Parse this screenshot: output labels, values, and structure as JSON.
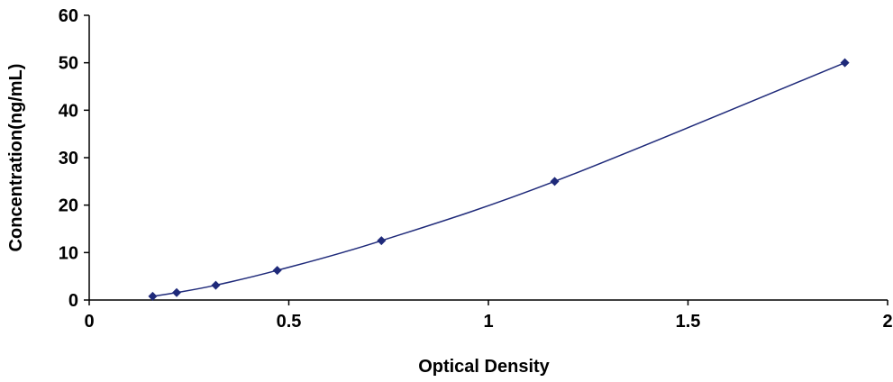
{
  "chart_data": {
    "type": "scatter",
    "xlabel": "Optical Density",
    "ylabel": "Concentration(ng/mL)",
    "xlim": [
      0,
      2
    ],
    "ylim": [
      0,
      60
    ],
    "x_ticks": [
      0,
      0.5,
      1,
      1.5,
      2
    ],
    "x_tick_labels": [
      "0",
      "0.5",
      "1",
      "1.5",
      "2"
    ],
    "y_ticks": [
      0,
      10,
      20,
      30,
      40,
      50,
      60
    ],
    "y_tick_labels": [
      "0",
      "10",
      "20",
      "30",
      "40",
      "50",
      "60"
    ],
    "grid": false,
    "line": "smooth",
    "marker": "diamond",
    "series": [
      {
        "color": "#1f2a7a",
        "points": [
          {
            "x": 0.159,
            "y": 0.78
          },
          {
            "x": 0.219,
            "y": 1.56
          },
          {
            "x": 0.317,
            "y": 3.12
          },
          {
            "x": 0.471,
            "y": 6.25
          },
          {
            "x": 0.732,
            "y": 12.5
          },
          {
            "x": 1.166,
            "y": 25
          },
          {
            "x": 1.893,
            "y": 50
          }
        ]
      }
    ]
  }
}
